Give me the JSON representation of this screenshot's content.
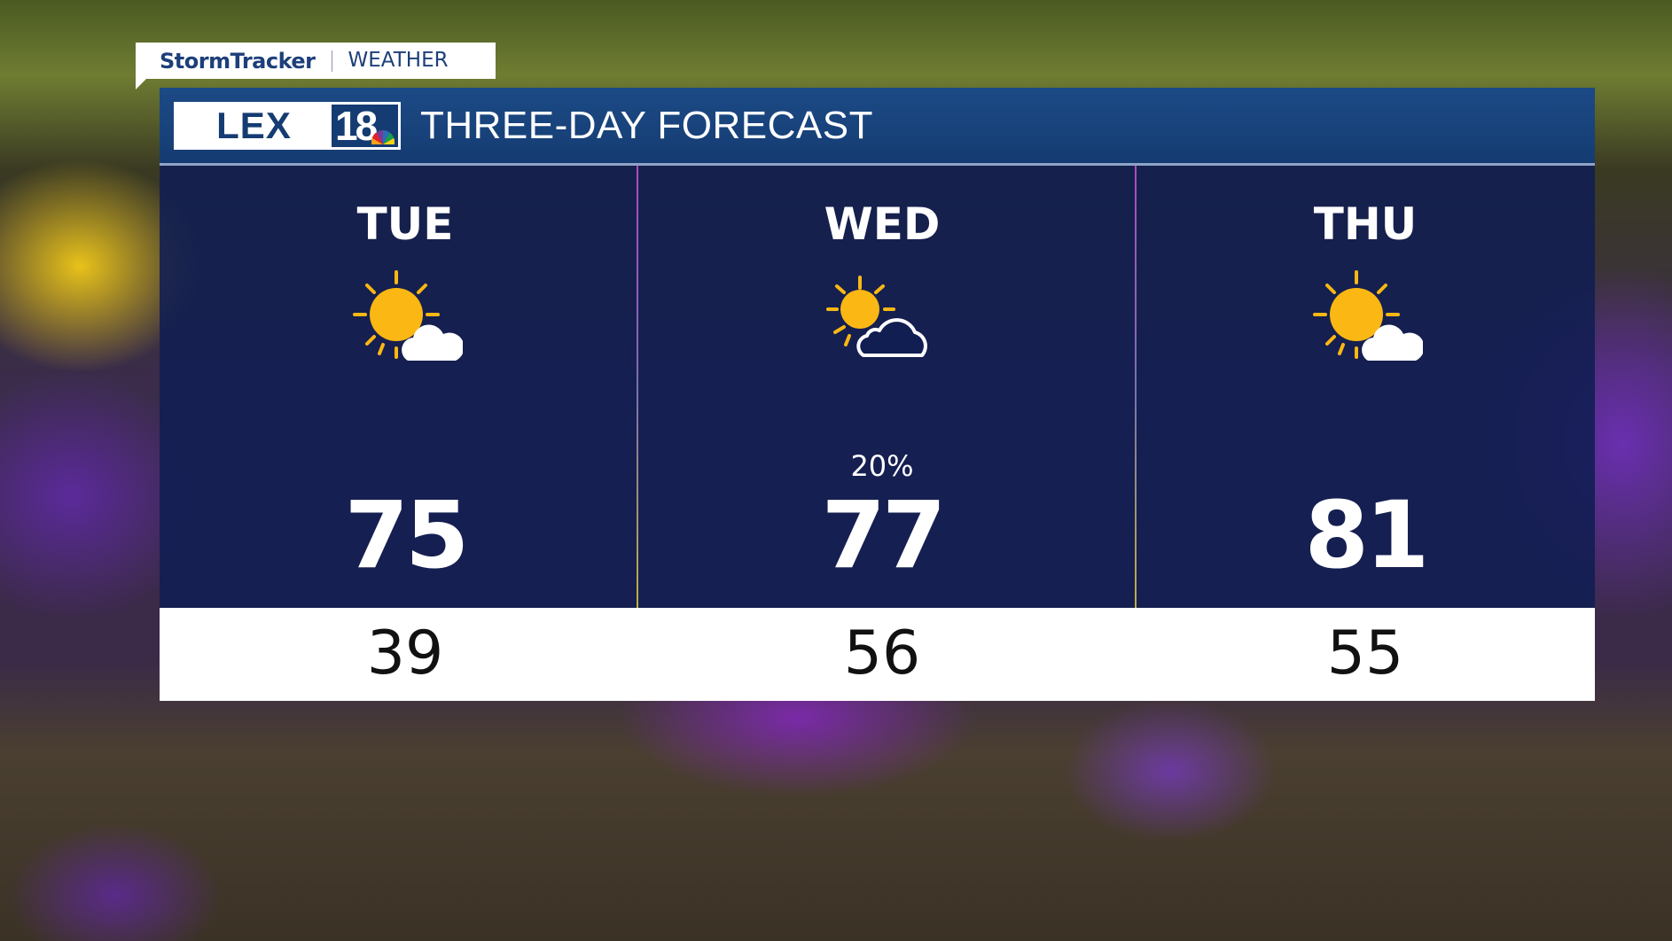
{
  "brand": {
    "tab_primary": "StormTracker",
    "tab_secondary": "WEATHER",
    "logo_text": "LEX18",
    "title": "THREE-DAY FORECAST"
  },
  "colors": {
    "header": "#1c4a86",
    "panel": "#101e52",
    "sun": "#fbb713",
    "low_strip": "#ffffff"
  },
  "days": [
    {
      "day": "TUE",
      "icon": "sun-small-cloud-icon",
      "precip": "",
      "high": "75",
      "low": "39"
    },
    {
      "day": "WED",
      "icon": "partly-cloudy-outline-icon",
      "precip": "20%",
      "high": "77",
      "low": "56"
    },
    {
      "day": "THU",
      "icon": "sun-small-cloud-icon",
      "precip": "",
      "high": "81",
      "low": "55"
    }
  ]
}
